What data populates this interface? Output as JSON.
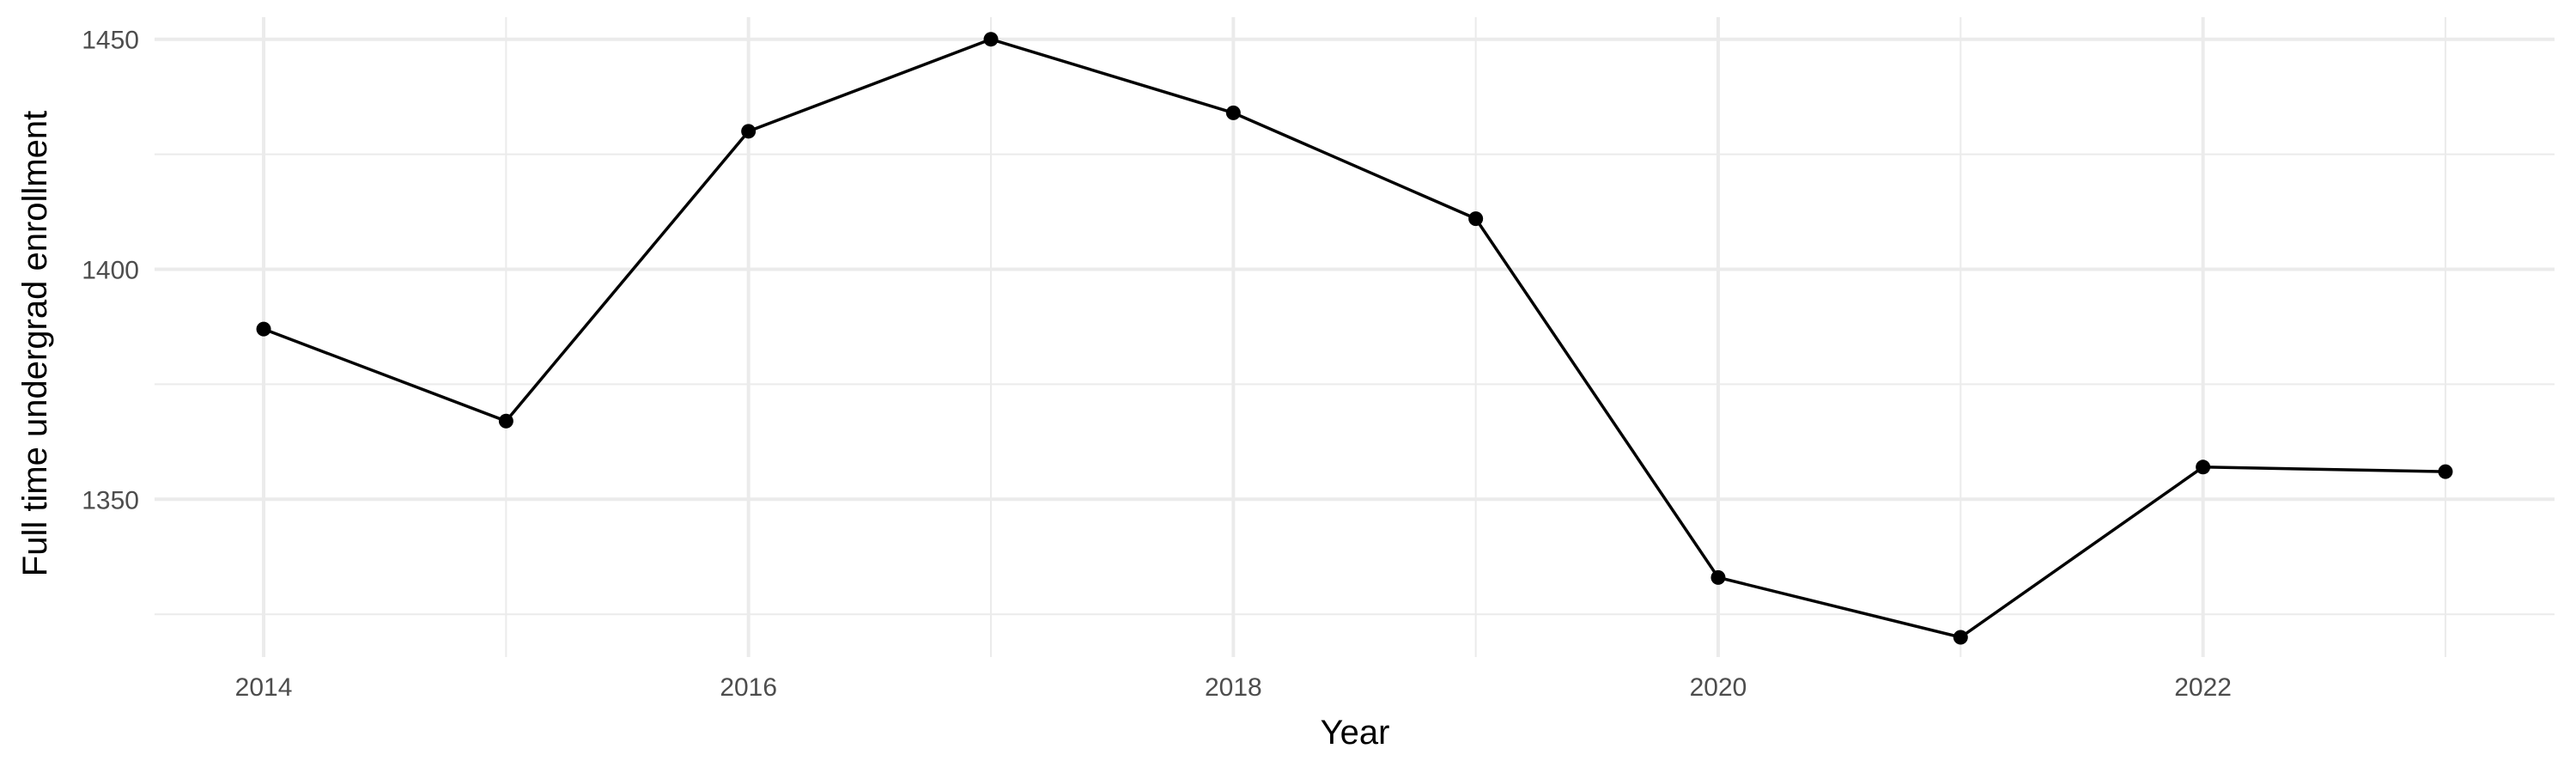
{
  "chart_data": {
    "type": "line",
    "title": "",
    "xlabel": "Year",
    "ylabel": "Full time undergrad enrollment",
    "x": [
      2014,
      2015,
      2016,
      2017,
      2018,
      2019,
      2020,
      2021,
      2022,
      2023
    ],
    "series": [
      {
        "values": [
          1387,
          1367,
          1430,
          1450,
          1434,
          1411,
          1333,
          1320,
          1357,
          1356
        ],
        "color": "#000000"
      }
    ],
    "xticks": [
      "2014",
      "2016",
      "2018",
      "2020",
      "2022"
    ],
    "yticks": [
      "1350",
      "1400",
      "1450"
    ],
    "xlim": [
      2013.55,
      2023.45
    ],
    "ylim": [
      1315.7,
      1454.8
    ],
    "grid": true,
    "markers": true
  }
}
